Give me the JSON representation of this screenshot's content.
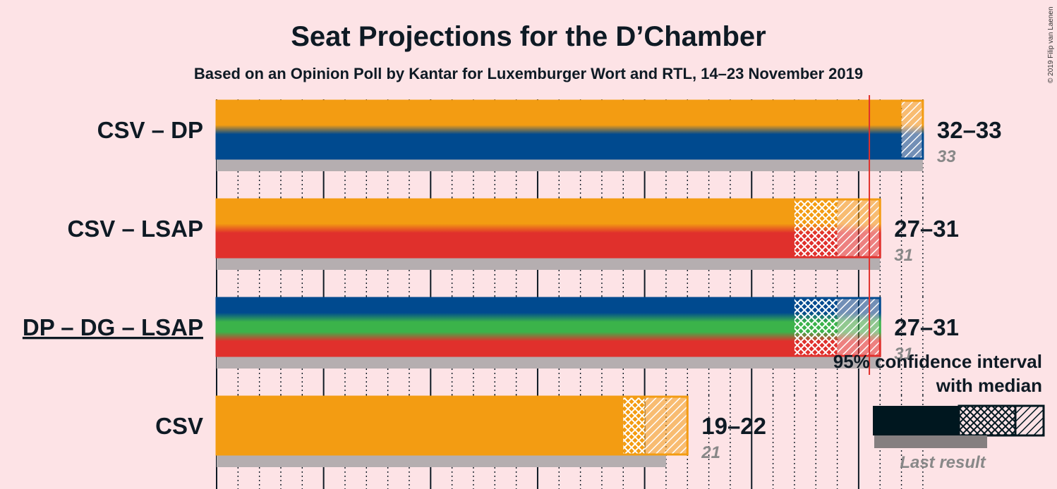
{
  "title": "Seat Projections for the D’Chamber",
  "subtitle": "Based on an Opinion Poll by Kantar for Luxemburger Wort and RTL, 14–23 November 2019",
  "copyright": "© 2019 Filip van Laenen",
  "legend": {
    "line1": "95% confidence interval",
    "line2": "with median",
    "last_result": "Last result"
  },
  "colors": {
    "background": "#fde3e6",
    "CSV": "#f39c12",
    "DP": "#004a8f",
    "LSAP": "#e0302c",
    "DG": "#3bb34a",
    "majority_line": "#e0302c",
    "last_result_bar": "#b5aeb0",
    "legend_dark": "#00171f"
  },
  "chart_data": {
    "type": "bar",
    "x_unit": "seats",
    "xlim": [
      0,
      33
    ],
    "majority": 30.5,
    "rows": [
      {
        "label": "CSV – DP",
        "parties": [
          "CSV",
          "DP"
        ],
        "ci_low": 32,
        "median": 32,
        "ci_high": 33,
        "range_label": "32–33",
        "last_result": 33,
        "last_label": "33",
        "underline": false
      },
      {
        "label": "CSV – LSAP",
        "parties": [
          "CSV",
          "LSAP"
        ],
        "ci_low": 27,
        "median": 29,
        "ci_high": 31,
        "range_label": "27–31",
        "last_result": 31,
        "last_label": "31",
        "underline": false
      },
      {
        "label": "DP – DG – LSAP",
        "parties": [
          "DP",
          "DG",
          "LSAP"
        ],
        "ci_low": 27,
        "median": 29,
        "ci_high": 31,
        "range_label": "27–31",
        "last_result": 31,
        "last_label": "31",
        "underline": true
      },
      {
        "label": "CSV",
        "parties": [
          "CSV"
        ],
        "ci_low": 19,
        "median": 20,
        "ci_high": 22,
        "range_label": "19–22",
        "last_result": 21,
        "last_label": "21",
        "underline": false
      }
    ]
  }
}
